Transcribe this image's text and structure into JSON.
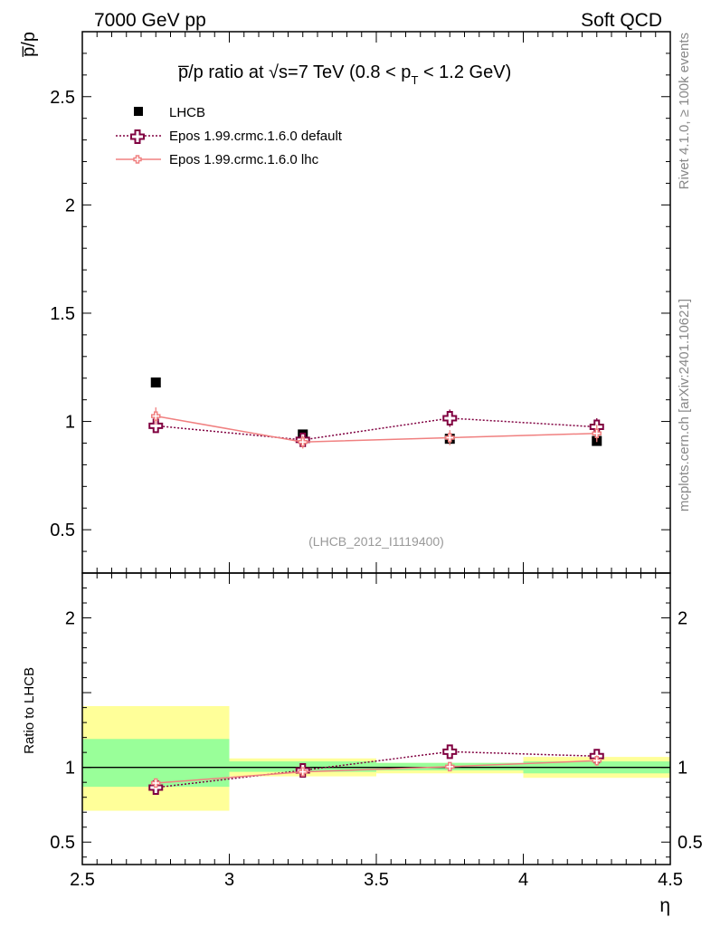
{
  "header": {
    "left": "7000 GeV pp",
    "right": "Soft QCD"
  },
  "title": {
    "part1": "p̅/p ratio at √s=7 TeV (0.8 < p",
    "sub": "T",
    "part2": " < 1.2 GeV)"
  },
  "side_labels": {
    "rivet": "Rivet 4.1.0, ≥ 100k events",
    "mcplots": "mcplots.cern.ch [arXiv:2401.10621]"
  },
  "watermark": "(LHCB_2012_I1119400)",
  "colors": {
    "lhcb": "#000000",
    "default": "#800040",
    "lhc": "#f08080",
    "band_stat": "#99ff99",
    "band_syst": "#ffff99"
  },
  "chart_data": [
    {
      "type": "scatter",
      "panel": "main",
      "ylabel": "p̅/p",
      "xlabel": "",
      "xlim": [
        2.5,
        4.5
      ],
      "ylim": [
        0.3,
        2.8
      ],
      "yticks": [
        0.5,
        1,
        1.5,
        2,
        2.5
      ],
      "ytick_labels": [
        "0.5",
        "1",
        "1.5",
        "2",
        "2.5"
      ],
      "legend_position": "top-left",
      "x": [
        2.75,
        3.25,
        3.75,
        4.25
      ],
      "x_bins": [
        [
          2.5,
          3.0
        ],
        [
          3.0,
          3.5
        ],
        [
          3.5,
          4.0
        ],
        [
          4.0,
          4.5
        ]
      ],
      "series": [
        {
          "name": "LHCB",
          "style": "marker",
          "values": [
            1.18,
            0.94,
            0.92,
            0.91
          ],
          "errors": [
            0.0,
            0.0,
            0.0,
            0.0
          ]
        },
        {
          "name": "Epos 1.99.crmc.1.6.0 default",
          "style": "dotted",
          "values": [
            0.98,
            0.915,
            1.015,
            0.975
          ],
          "errors": [
            0.03,
            0.03,
            0.04,
            0.04
          ]
        },
        {
          "name": "Epos 1.99.crmc.1.6.0 lhc",
          "style": "solid",
          "values": [
            1.025,
            0.905,
            0.925,
            0.945
          ],
          "errors": [
            0.04,
            0.03,
            0.035,
            0.04
          ]
        }
      ]
    },
    {
      "type": "scatter",
      "panel": "ratio",
      "ylabel": "Ratio to LHCB",
      "xlabel": "η",
      "xlim": [
        2.5,
        4.5
      ],
      "ylim": [
        0.35,
        2.3
      ],
      "xticks": [
        2.5,
        3,
        3.5,
        4,
        4.5
      ],
      "xtick_labels": [
        "2.5",
        "3",
        "3.5",
        "4",
        "4.5"
      ],
      "yticks": [
        0.5,
        1,
        2
      ],
      "ytick_labels": [
        "0.5",
        "1",
        "2"
      ],
      "x": [
        2.75,
        3.25,
        3.75,
        4.25
      ],
      "bands": {
        "x_bins": [
          [
            2.5,
            3.0
          ],
          [
            3.0,
            3.5
          ],
          [
            3.5,
            4.0
          ],
          [
            4.0,
            4.5
          ]
        ],
        "syst_low": [
          0.71,
          0.94,
          0.96,
          0.93
        ],
        "syst_high": [
          1.41,
          1.06,
          1.03,
          1.07
        ],
        "stat_low": [
          0.87,
          0.97,
          0.98,
          0.96
        ],
        "stat_high": [
          1.19,
          1.04,
          1.03,
          1.04
        ]
      },
      "series": [
        {
          "name": "Epos 1.99.crmc.1.6.0 default",
          "style": "dotted",
          "values": [
            0.865,
            0.98,
            1.105,
            1.075
          ],
          "errors": [
            0.025,
            0.025,
            0.03,
            0.03
          ]
        },
        {
          "name": "Epos 1.99.crmc.1.6.0 lhc",
          "style": "solid",
          "values": [
            0.895,
            0.97,
            1.005,
            1.045
          ],
          "errors": [
            0.03,
            0.025,
            0.03,
            0.035
          ]
        }
      ]
    }
  ]
}
